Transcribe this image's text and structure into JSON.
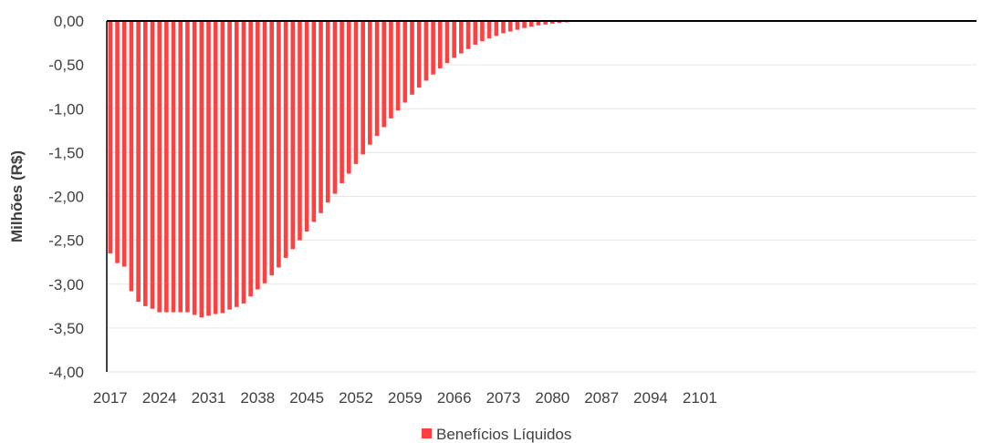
{
  "chart_data": {
    "type": "bar",
    "ylabel": "Milhões  (R$)",
    "ylim": [
      -4.0,
      0.0
    ],
    "y_ticks": [
      {
        "value": 0.0,
        "label": "0,00"
      },
      {
        "value": -0.5,
        "label": "-0,50"
      },
      {
        "value": -1.0,
        "label": "-1,00"
      },
      {
        "value": -1.5,
        "label": "-1,50"
      },
      {
        "value": -2.0,
        "label": "-2,00"
      },
      {
        "value": -2.5,
        "label": "-2,50"
      },
      {
        "value": -3.0,
        "label": "-3,00"
      },
      {
        "value": -3.5,
        "label": "-3,50"
      },
      {
        "value": -4.0,
        "label": "-4,00"
      }
    ],
    "x_tick_labels": [
      "2017",
      "2024",
      "2031",
      "2038",
      "2045",
      "2052",
      "2059",
      "2066",
      "2073",
      "2080",
      "2087",
      "2094",
      "2101"
    ],
    "categories": [
      2017,
      2018,
      2019,
      2020,
      2021,
      2022,
      2023,
      2024,
      2025,
      2026,
      2027,
      2028,
      2029,
      2030,
      2031,
      2032,
      2033,
      2034,
      2035,
      2036,
      2037,
      2038,
      2039,
      2040,
      2041,
      2042,
      2043,
      2044,
      2045,
      2046,
      2047,
      2048,
      2049,
      2050,
      2051,
      2052,
      2053,
      2054,
      2055,
      2056,
      2057,
      2058,
      2059,
      2060,
      2061,
      2062,
      2063,
      2064,
      2065,
      2066,
      2067,
      2068,
      2069,
      2070,
      2071,
      2072,
      2073,
      2074,
      2075,
      2076,
      2077,
      2078,
      2079,
      2080,
      2081,
      2082,
      2083,
      2084,
      2085,
      2086,
      2087,
      2088,
      2089,
      2090,
      2091,
      2092,
      2093,
      2094,
      2095,
      2096,
      2097,
      2098,
      2099,
      2100,
      2101,
      2102,
      2103
    ],
    "series": [
      {
        "name": "Benefícios Líquidos",
        "color": "#ff4040",
        "values": [
          -2.65,
          -2.76,
          -2.8,
          -3.08,
          -3.2,
          -3.25,
          -3.28,
          -3.32,
          -3.32,
          -3.32,
          -3.32,
          -3.32,
          -3.35,
          -3.38,
          -3.36,
          -3.34,
          -3.33,
          -3.29,
          -3.26,
          -3.22,
          -3.14,
          -3.06,
          -2.99,
          -2.9,
          -2.81,
          -2.7,
          -2.6,
          -2.5,
          -2.4,
          -2.29,
          -2.19,
          -2.07,
          -1.97,
          -1.85,
          -1.74,
          -1.63,
          -1.52,
          -1.41,
          -1.31,
          -1.21,
          -1.11,
          -1.02,
          -0.93,
          -0.84,
          -0.76,
          -0.68,
          -0.61,
          -0.54,
          -0.48,
          -0.42,
          -0.37,
          -0.32,
          -0.27,
          -0.23,
          -0.2,
          -0.17,
          -0.14,
          -0.12,
          -0.1,
          -0.08,
          -0.065,
          -0.05,
          -0.04,
          -0.03,
          -0.022,
          -0.015,
          -0.01,
          -0.006,
          -0.004,
          -0.002,
          -0.001,
          0,
          0,
          0,
          0,
          0,
          0,
          0,
          0,
          0,
          0,
          0,
          0,
          0,
          0,
          0,
          0
        ]
      }
    ],
    "legend_position": "bottom-center",
    "grid": true
  }
}
